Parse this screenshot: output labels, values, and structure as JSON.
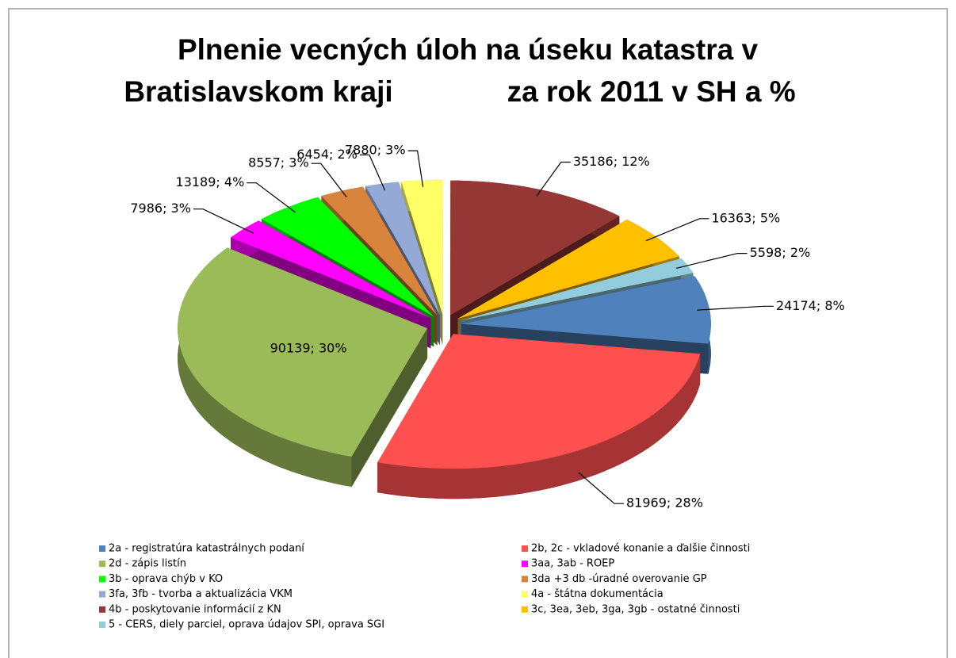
{
  "chart_data": {
    "type": "pie",
    "title": [
      "Plnenie vecných úloh na úseku katastra v",
      "Bratislavskom kraji              za rok 2011 v SH a %"
    ],
    "categories": [
      "2a - registratúra katastrálnych podaní",
      "2b, 2c - vkladové konanie a ďalšie činnosti",
      "2d - zápis listín",
      "3aa, 3ab - ROEP",
      "3b - oprava chýb v KO",
      "3da +3 db -úradné overovanie GP",
      "3fa, 3fb - tvorba a aktualizácia VKM",
      "4a - štátna dokumentácia",
      "4b - poskytovanie  informácií z KN",
      "3c, 3ea, 3eb, 3ga, 3gb - ostatné činnosti",
      "5 - CERS, diely parciel, oprava údajov SPI, oprava SGI"
    ],
    "values": [
      24174,
      81969,
      90139,
      7986,
      13189,
      8557,
      6454,
      7880,
      35186,
      16363,
      5598
    ],
    "value_labels": [
      "24174; 8%",
      "81969; 28%",
      "90139; 30%",
      "7986; 3%",
      "13189; 4%",
      "8557; 3%",
      "6454; 2%",
      "7880; 3%",
      "35186; 12%",
      "16363; 5%",
      "5598; 2%"
    ],
    "colors": [
      "#4f81bd",
      "#ff5050",
      "#9bbb59",
      "#ff00ff",
      "#00ff00",
      "#d8843c",
      "#95a9d6",
      "#ffff66",
      "#953735",
      "#ffc000",
      "#93cddd"
    ],
    "legend": "bottom"
  }
}
